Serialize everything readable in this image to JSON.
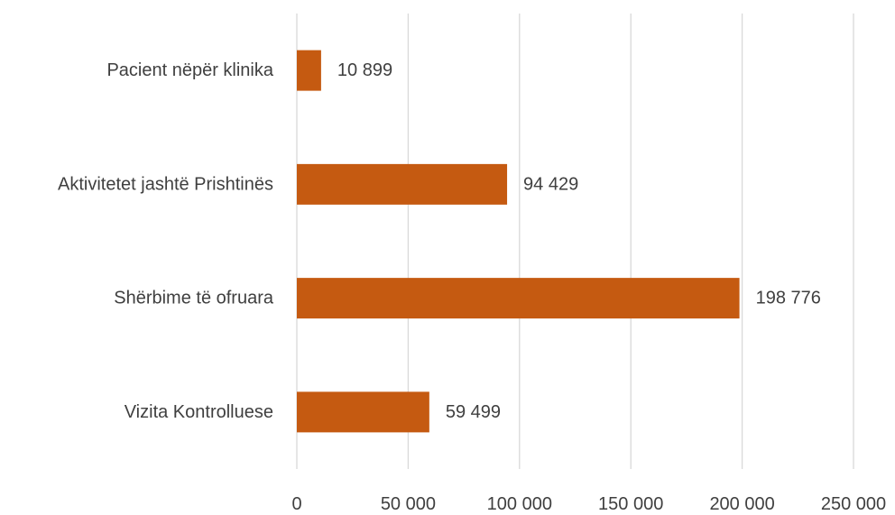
{
  "chart_data": {
    "type": "bar",
    "orientation": "horizontal",
    "title": "",
    "xlabel": "",
    "ylabel": "",
    "categories": [
      "Pacient nëpër klinika",
      "Aktivitetet jashtë Prishtinës",
      "Shërbime të ofruara",
      "Vizita Kontrolluese"
    ],
    "values": [
      10899,
      94429,
      198776,
      59499
    ],
    "data_labels": [
      "10 899",
      "94 429",
      "198 776",
      "59 499"
    ],
    "xlim": [
      0,
      250000
    ],
    "x_ticks": [
      0,
      50000,
      100000,
      150000,
      200000,
      250000
    ],
    "x_tick_labels": [
      "0",
      "50 000",
      "100 000",
      "150 000",
      "200 000",
      "250 000"
    ],
    "bar_color": "#c55a11",
    "grid": "vertical",
    "legend": "none"
  }
}
